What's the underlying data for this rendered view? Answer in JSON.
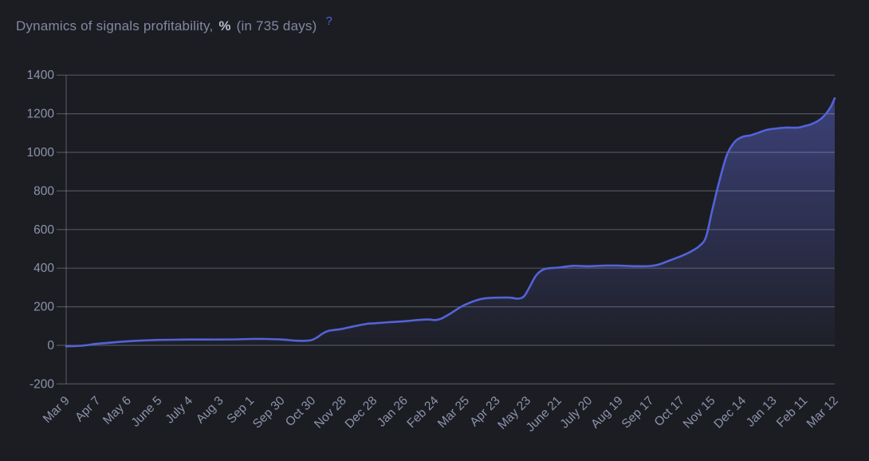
{
  "header": {
    "title_main": "Dynamics of signals profitability,",
    "title_percent": "%",
    "title_suffix": "(in 735 days)",
    "help_icon": "?"
  },
  "colors": {
    "background": "#1c1d22",
    "line": "#5363d9",
    "area_fill": "#616cde",
    "grid": "rgba(203,209,226,0.30)",
    "axis_text": "#8b94ae",
    "title_text": "#8089a3",
    "title_percent_text": "#b6bcca",
    "help_icon": "#4d61dd"
  },
  "chart_data": {
    "type": "area",
    "title": "Dynamics of signals profitability, % (in 735 days)",
    "xlabel": "",
    "ylabel": "",
    "grid": true,
    "legend_position": "none",
    "ylim": [
      -200,
      1400
    ],
    "y_ticks": [
      -200,
      0,
      200,
      400,
      600,
      800,
      1000,
      1200,
      1400
    ],
    "x_tick_labels": [
      "Mar 9",
      "Apr 7",
      "May 6",
      "June 5",
      "July 4",
      "Aug 3",
      "Sep 1",
      "Sep 30",
      "Oct 30",
      "Nov 28",
      "Dec 28",
      "Jan 26",
      "Feb 24",
      "Mar 25",
      "Apr 23",
      "May 23",
      "June 21",
      "July 20",
      "Aug 19",
      "Sep 17",
      "Oct 17",
      "Nov 15",
      "Dec 14",
      "Jan 13",
      "Feb 11",
      "Mar 12"
    ],
    "values_at_ticks": [
      -5,
      8,
      21,
      28,
      30,
      30,
      33,
      30,
      28,
      86,
      114,
      125,
      131,
      212,
      247,
      285,
      403,
      410,
      413,
      411,
      462,
      690,
      1080,
      1122,
      1135,
      1280
    ],
    "series": [
      {
        "name": "Signals profitability %",
        "x_unit": "x = tick index, 0 = Mar 9 ... 25 = Mar 12",
        "points": [
          [
            0,
            -5
          ],
          [
            0.5,
            -2
          ],
          [
            1,
            8
          ],
          [
            1.5,
            15
          ],
          [
            2,
            21
          ],
          [
            2.5,
            25
          ],
          [
            3,
            28
          ],
          [
            3.5,
            29
          ],
          [
            4,
            30
          ],
          [
            4.5,
            30
          ],
          [
            5,
            30
          ],
          [
            5.5,
            31
          ],
          [
            6,
            33
          ],
          [
            6.5,
            33
          ],
          [
            7,
            30
          ],
          [
            7.5,
            24
          ],
          [
            7.8,
            24
          ],
          [
            8,
            28
          ],
          [
            8.2,
            45
          ],
          [
            8.35,
            62
          ],
          [
            8.55,
            76
          ],
          [
            8.76,
            80
          ],
          [
            9,
            86
          ],
          [
            9.4,
            100
          ],
          [
            9.8,
            112
          ],
          [
            10,
            114
          ],
          [
            10.5,
            120
          ],
          [
            11,
            125
          ],
          [
            11.5,
            132
          ],
          [
            11.8,
            134
          ],
          [
            12,
            131
          ],
          [
            12.2,
            138
          ],
          [
            12.5,
            165
          ],
          [
            12.8,
            196
          ],
          [
            13,
            212
          ],
          [
            13.3,
            231
          ],
          [
            13.6,
            243
          ],
          [
            14,
            247
          ],
          [
            14.44,
            247
          ],
          [
            14.7,
            242
          ],
          [
            14.9,
            255
          ],
          [
            15.1,
            310
          ],
          [
            15.3,
            365
          ],
          [
            15.56,
            395
          ],
          [
            16,
            403
          ],
          [
            16.5,
            412
          ],
          [
            17,
            410
          ],
          [
            17.5,
            413
          ],
          [
            18,
            413
          ],
          [
            18.5,
            410
          ],
          [
            19,
            411
          ],
          [
            19.3,
            420
          ],
          [
            19.6,
            438
          ],
          [
            20,
            462
          ],
          [
            20.3,
            484
          ],
          [
            20.6,
            515
          ],
          [
            20.81,
            560
          ],
          [
            21,
            690
          ],
          [
            21.23,
            840
          ],
          [
            21.49,
            985
          ],
          [
            21.75,
            1055
          ],
          [
            22,
            1080
          ],
          [
            22.26,
            1088
          ],
          [
            22.49,
            1100
          ],
          [
            22.75,
            1115
          ],
          [
            23,
            1122
          ],
          [
            23.4,
            1128
          ],
          [
            23.8,
            1128
          ],
          [
            24,
            1135
          ],
          [
            24.3,
            1150
          ],
          [
            24.6,
            1180
          ],
          [
            24.85,
            1230
          ],
          [
            25,
            1280
          ]
        ]
      }
    ]
  }
}
